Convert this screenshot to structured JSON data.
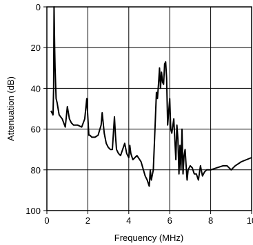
{
  "chart_data": {
    "type": "line",
    "title": "",
    "xlabel": "Frequency (MHz)",
    "ylabel": "Attenuation (dB)",
    "xlim": [
      0,
      10
    ],
    "ylim": [
      0,
      100
    ],
    "y_inverted": true,
    "grid": true,
    "x_ticks": [
      0,
      2,
      4,
      6,
      8,
      10
    ],
    "y_ticks": [
      0,
      20,
      40,
      60,
      80,
      100
    ],
    "x_tick_labels": [
      "0",
      "2",
      "4",
      "6",
      "8",
      "10"
    ],
    "y_tick_labels": [
      "0",
      "20",
      "40",
      "60",
      "80",
      "100"
    ],
    "series": [
      {
        "color": "#000000",
        "x": [
          0.2,
          0.3,
          0.33,
          0.35,
          0.38,
          0.4,
          0.45,
          0.5,
          0.6,
          0.75,
          0.9,
          1.0,
          1.1,
          1.2,
          1.3,
          1.5,
          1.7,
          1.85,
          1.95,
          2.0,
          2.05,
          2.1,
          2.2,
          2.35,
          2.5,
          2.65,
          2.7,
          2.8,
          2.9,
          3.0,
          3.1,
          3.2,
          3.3,
          3.35,
          3.4,
          3.5,
          3.6,
          3.8,
          3.9,
          4.0,
          4.05,
          4.1,
          4.2,
          4.3,
          4.4,
          4.6,
          4.8,
          4.9,
          5.0,
          5.05,
          5.1,
          5.2,
          5.3,
          5.35,
          5.4,
          5.45,
          5.5,
          5.55,
          5.6,
          5.65,
          5.7,
          5.75,
          5.8,
          5.85,
          5.9,
          6.0,
          6.05,
          6.1,
          6.2,
          6.3,
          6.35,
          6.4,
          6.45,
          6.5,
          6.55,
          6.6,
          6.65,
          6.7,
          6.75,
          6.8,
          6.85,
          6.9,
          7.0,
          7.1,
          7.2,
          7.3,
          7.4,
          7.5,
          7.6,
          7.7,
          7.8,
          8.0,
          8.3,
          8.6,
          8.8,
          9.0,
          9.2,
          9.5,
          10.0
        ],
        "y": [
          51,
          53,
          40,
          0,
          20,
          30,
          45,
          47,
          53,
          55,
          59,
          49,
          55,
          57,
          58,
          58,
          59,
          55,
          45,
          54,
          63,
          63,
          64,
          64,
          63,
          58,
          52,
          62,
          67,
          69,
          70,
          70,
          54,
          63,
          70,
          72,
          73,
          67,
          72,
          74,
          68,
          72,
          75,
          74,
          73,
          76,
          83,
          85,
          88,
          80,
          85,
          80,
          55,
          42,
          45,
          38,
          30,
          40,
          32,
          37,
          38,
          28,
          27,
          35,
          58,
          45,
          60,
          62,
          55,
          75,
          58,
          65,
          82,
          68,
          80,
          60,
          82,
          73,
          70,
          78,
          85,
          80,
          78,
          79,
          82,
          82,
          85,
          78,
          83,
          81,
          80,
          80,
          79,
          78,
          78,
          80,
          78,
          76,
          74
        ]
      }
    ]
  }
}
